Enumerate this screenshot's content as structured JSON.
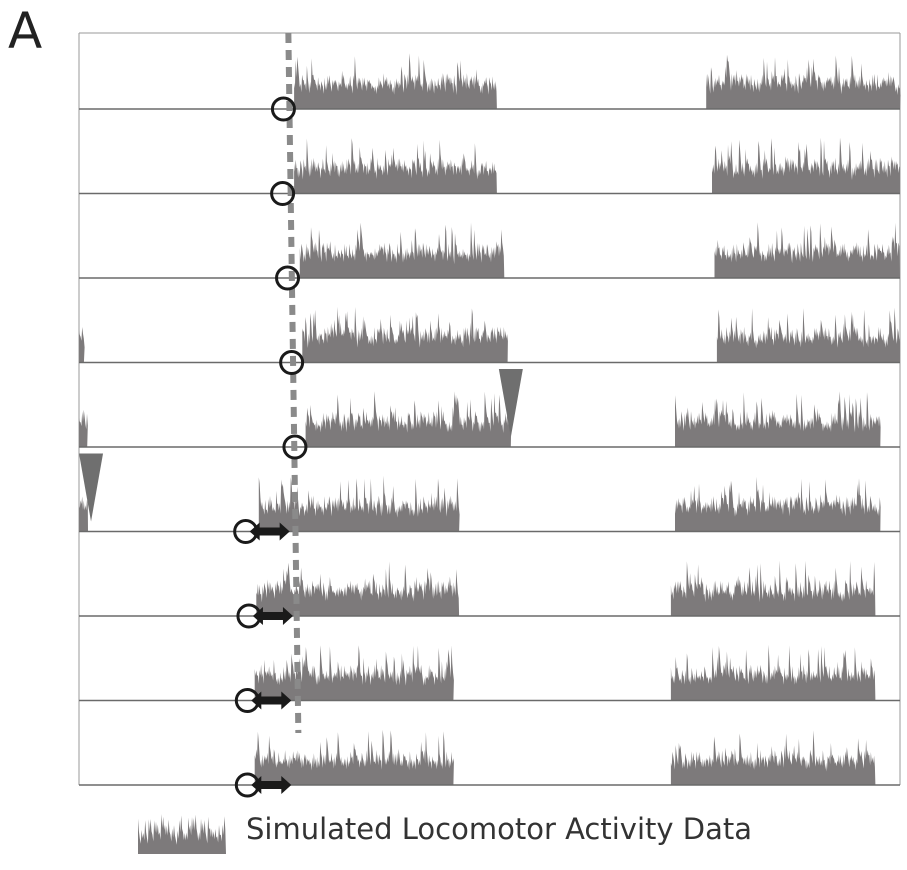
{
  "panel_label": "A",
  "legend": {
    "label": "Simulated Locomotor Activity Data"
  },
  "colors": {
    "activity": "#7d7a7b",
    "baseline": "#6a6a6a",
    "frame": "#9a9a9a",
    "onset_marker": "#1a1a1a",
    "reference_line": "#8a8a8a",
    "arrowhead": "#6f6f6f"
  },
  "chart_data": {
    "type": "actogram",
    "title": "",
    "xlabel": "",
    "ylabel": "",
    "xlim": [
      0,
      100
    ],
    "days": [
      {
        "day": 1,
        "bouts": [
          [
            26.2,
            50.9
          ],
          [
            76.4,
            100
          ]
        ],
        "onset": 24.9,
        "phase_shift_arrow": false,
        "arrowhead_at": null
      },
      {
        "day": 2,
        "bouts": [
          [
            26.2,
            50.9
          ],
          [
            77.1,
            100
          ]
        ],
        "onset": 24.8,
        "phase_shift_arrow": false,
        "arrowhead_at": null
      },
      {
        "day": 3,
        "bouts": [
          [
            26.9,
            51.8
          ],
          [
            77.4,
            100
          ]
        ],
        "onset": 25.4,
        "phase_shift_arrow": false,
        "arrowhead_at": null
      },
      {
        "day": 4,
        "bouts": [
          [
            0,
            0.6
          ],
          [
            27.2,
            52.2
          ],
          [
            77.7,
            100
          ]
        ],
        "onset": 25.9,
        "phase_shift_arrow": false,
        "arrowhead_at": null
      },
      {
        "day": 5,
        "bouts": [
          [
            0,
            1.0
          ],
          [
            27.6,
            52.6
          ],
          [
            72.6,
            97.6
          ]
        ],
        "onset": 26.3,
        "phase_shift_arrow": false,
        "arrowhead_at": 52.6
      },
      {
        "day": 6,
        "bouts": [
          [
            0,
            1.1
          ],
          [
            21.9,
            46.3
          ],
          [
            72.6,
            97.6
          ]
        ],
        "onset": 20.3,
        "phase_shift_arrow": true,
        "arrowhead_at": 1.1
      },
      {
        "day": 7,
        "bouts": [
          [
            21.6,
            46.3
          ],
          [
            72.1,
            97.0
          ]
        ],
        "onset": 20.7,
        "phase_shift_arrow": true,
        "arrowhead_at": null
      },
      {
        "day": 8,
        "bouts": [
          [
            21.4,
            45.6
          ],
          [
            72.1,
            97.0
          ]
        ],
        "onset": 20.5,
        "phase_shift_arrow": true,
        "arrowhead_at": null
      },
      {
        "day": 9,
        "bouts": [
          [
            21.4,
            45.6
          ],
          [
            72.1,
            97.0
          ]
        ],
        "onset": 20.5,
        "phase_shift_arrow": true,
        "arrowhead_at": null
      }
    ],
    "reference_line_x": 25.5,
    "grid": false,
    "legend_position": "bottom"
  }
}
